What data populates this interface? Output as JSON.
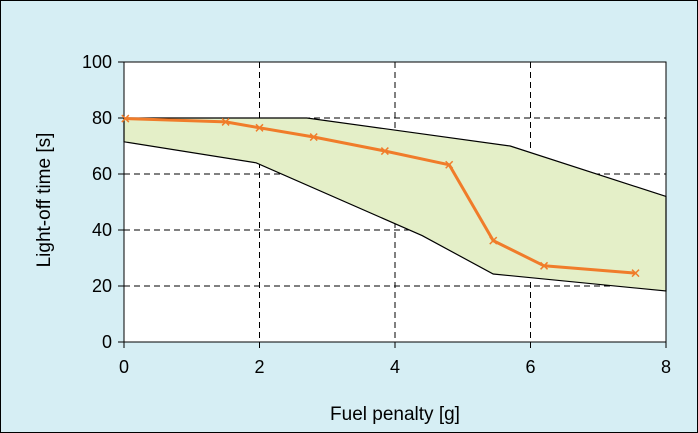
{
  "chart_data": {
    "type": "line",
    "title": "",
    "xlabel": "Fuel penalty [g]",
    "ylabel": "Light-off time [s]",
    "xlim": [
      0,
      8
    ],
    "ylim": [
      0,
      100
    ],
    "x_ticks": [
      0,
      2,
      4,
      6,
      8
    ],
    "y_ticks": [
      0,
      20,
      40,
      60,
      80,
      100
    ],
    "grid": true,
    "legend": "none",
    "band": {
      "upper": [
        [
          0,
          80
        ],
        [
          2.7,
          80
        ],
        [
          5.7,
          70
        ],
        [
          8,
          52
        ]
      ],
      "lower": [
        [
          0,
          71.5
        ],
        [
          1.95,
          64
        ],
        [
          4.4,
          38
        ],
        [
          5.45,
          24.3
        ],
        [
          8,
          18.2
        ]
      ],
      "fill_color": "#e4efc8",
      "edge_color": "#000000"
    },
    "series": [
      {
        "color": "#f07c2a",
        "marker": "x",
        "points": [
          [
            0.02,
            79.8
          ],
          [
            1.5,
            78.6
          ],
          [
            2.0,
            76.5
          ],
          [
            2.8,
            73.2
          ],
          [
            3.85,
            68.2
          ],
          [
            4.8,
            63.3
          ],
          [
            5.45,
            36.2
          ],
          [
            6.2,
            27.2
          ],
          [
            7.55,
            24.6
          ]
        ]
      }
    ],
    "colors": {
      "background": "#d6eef4",
      "plot_area": "#ffffff",
      "grid": "#000000"
    }
  }
}
